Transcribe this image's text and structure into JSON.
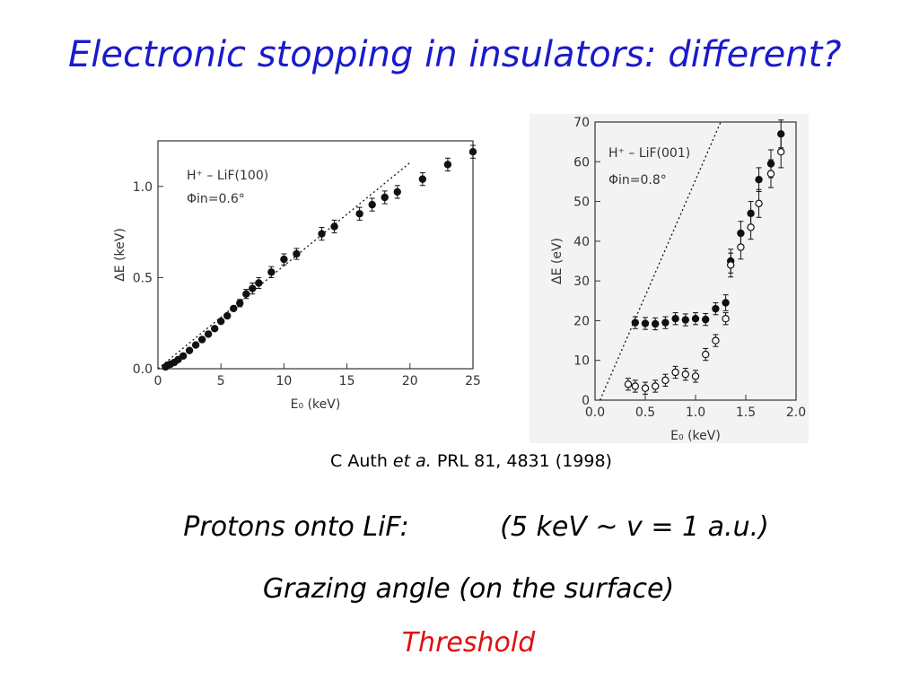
{
  "title": "Electronic stopping in insulators: different?",
  "chart_data": [
    {
      "type": "scatter",
      "annotations": [
        "H⁺ – LiF(100)",
        "Φin=0.6°"
      ],
      "xlabel": "E₀ (keV)",
      "ylabel": "ΔE (keV)",
      "xlim": [
        0,
        25
      ],
      "ylim": [
        0,
        1.25
      ],
      "xticks": [
        0,
        5,
        10,
        15,
        20,
        25
      ],
      "yticks": [
        {
          "value": 0,
          "label": "0.0"
        },
        {
          "value": 0.5,
          "label": "0.5"
        },
        {
          "value": 1,
          "label": "1.0"
        }
      ],
      "series": [
        {
          "marker": "filled",
          "color": "#111111",
          "x": [
            0.6,
            0.8,
            1.0,
            1.3,
            1.6,
            2.0,
            2.5,
            3.0,
            3.5,
            4.0,
            4.5,
            5.0,
            5.5,
            6.0,
            6.5,
            7.0,
            7.5,
            8.0,
            9.0,
            10.0,
            11.0,
            13.0,
            14.0,
            16.0,
            17.0,
            18.0,
            19.0,
            21.0,
            23.0,
            25.0
          ],
          "values": [
            0.01,
            0.02,
            0.025,
            0.035,
            0.05,
            0.07,
            0.1,
            0.13,
            0.16,
            0.19,
            0.22,
            0.26,
            0.29,
            0.33,
            0.36,
            0.41,
            0.44,
            0.47,
            0.53,
            0.6,
            0.63,
            0.74,
            0.78,
            0.85,
            0.9,
            0.94,
            0.97,
            1.04,
            1.12,
            1.19
          ],
          "errors": [
            null,
            null,
            null,
            null,
            null,
            null,
            null,
            null,
            null,
            null,
            null,
            null,
            null,
            null,
            0.02,
            0.025,
            0.03,
            0.03,
            0.03,
            0.03,
            0.03,
            0.035,
            0.035,
            0.035,
            0.035,
            0.035,
            0.035,
            0.035,
            0.035,
            0.035
          ]
        },
        {
          "marker": "dotted-line",
          "color": "#111111",
          "x": [
            0,
            20
          ],
          "values": [
            0,
            1.13
          ]
        }
      ]
    },
    {
      "type": "scatter",
      "annotations": [
        "H⁺ – LiF(001)",
        "Φin=0.8°"
      ],
      "xlabel": "E₀ (keV)",
      "ylabel": "ΔE (eV)",
      "xlim": [
        0,
        2
      ],
      "ylim": [
        0,
        70
      ],
      "xticks": [
        {
          "value": 0,
          "label": "0.0"
        },
        {
          "value": 0.5,
          "label": "0.5"
        },
        {
          "value": 1,
          "label": "1.0"
        },
        {
          "value": 1.5,
          "label": "1.5"
        },
        {
          "value": 2,
          "label": "2.0"
        }
      ],
      "yticks": [
        0,
        10,
        20,
        30,
        40,
        50,
        60,
        70
      ],
      "series": [
        {
          "marker": "filled",
          "color": "#111111",
          "x": [
            0.4,
            0.5,
            0.6,
            0.7,
            0.8,
            0.9,
            1.0,
            1.1,
            1.2,
            1.3,
            1.35,
            1.45,
            1.55,
            1.63,
            1.75,
            1.85
          ],
          "values": [
            19.5,
            19.3,
            19.2,
            19.5,
            20.5,
            20.2,
            20.5,
            20.3,
            23.0,
            24.5,
            35,
            42,
            47,
            55.5,
            59.5,
            67
          ],
          "errors": [
            1.5,
            1.5,
            1.5,
            1.5,
            1.5,
            1.5,
            1.5,
            1.5,
            1.5,
            2,
            3,
            3,
            3,
            3,
            3.5,
            3.5
          ]
        },
        {
          "marker": "open",
          "color": "#111111",
          "x": [
            0.33,
            0.4,
            0.5,
            0.6,
            0.7,
            0.8,
            0.9,
            1.0,
            1.1,
            1.2,
            1.3,
            1.35,
            1.45,
            1.55,
            1.63,
            1.75,
            1.85
          ],
          "values": [
            4,
            3.5,
            3,
            3.5,
            5,
            7,
            6.5,
            6,
            11.5,
            15,
            20.5,
            34,
            38.5,
            43.5,
            49.5,
            57,
            62.5
          ],
          "errors": [
            1.5,
            1.5,
            1.5,
            1.5,
            1.5,
            1.5,
            1.5,
            1.5,
            1.5,
            1.5,
            1.5,
            3,
            3,
            3,
            3.5,
            3.5,
            4
          ]
        },
        {
          "marker": "dotted-line",
          "color": "#111111",
          "x": [
            0.05,
            1.25
          ],
          "values": [
            0,
            70
          ]
        }
      ]
    }
  ],
  "citation": {
    "author": "C Auth",
    "etal": "et a.",
    "ref": "PRL 81, 4831 (1998)"
  },
  "lines": [
    "Protons onto LiF:",
    "(5 keV ~ v = 1 a.u.)",
    "Grazing angle (on the surface)",
    "Threshold"
  ]
}
